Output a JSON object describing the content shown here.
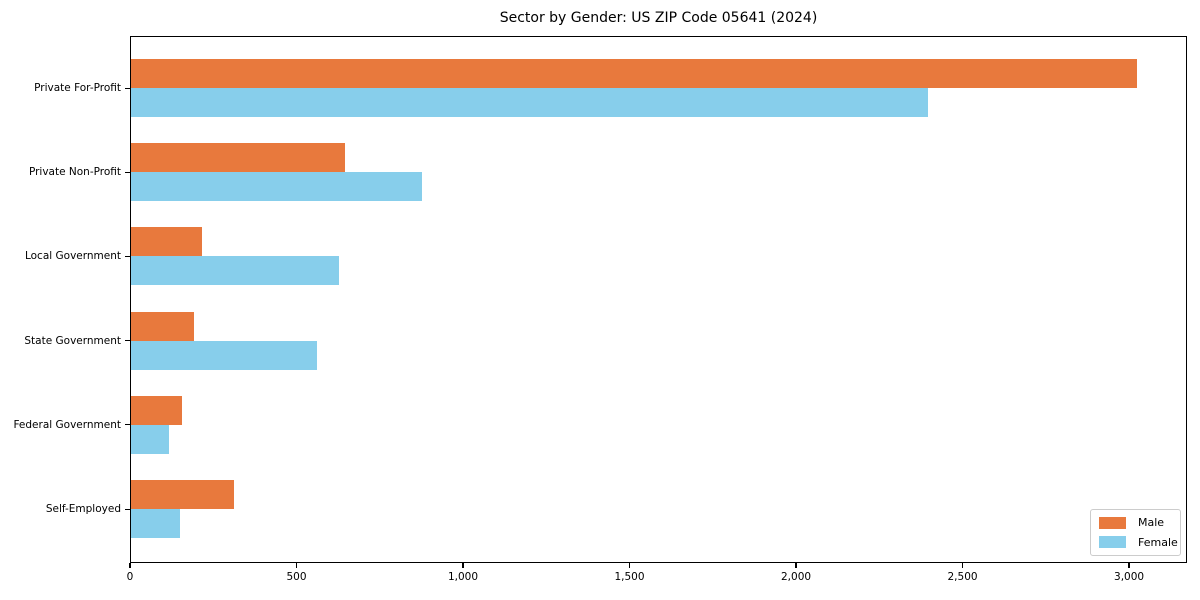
{
  "title": "Sector by Gender: US ZIP Code 05641 (2024)",
  "chart_data": {
    "type": "bar",
    "orientation": "horizontal",
    "title": "Sector by Gender: US ZIP Code 05641 (2024)",
    "xlabel": "",
    "ylabel": "",
    "categories": [
      "Private For-Profit",
      "Private Non-Profit",
      "Local Government",
      "State Government",
      "Federal Government",
      "Self-Employed"
    ],
    "series": [
      {
        "name": "Male",
        "color": "#E8793D",
        "values": [
          3021,
          643,
          213,
          189,
          153,
          310
        ]
      },
      {
        "name": "Female",
        "color": "#87CEEB",
        "values": [
          2393,
          875,
          625,
          559,
          114,
          147
        ]
      }
    ],
    "xlim": [
      0,
      3174
    ],
    "x_ticks": [
      0,
      500,
      1000,
      1500,
      2000,
      2500,
      3000
    ],
    "x_tick_labels": [
      "0",
      "500",
      "1,000",
      "1,500",
      "2,000",
      "2,500",
      "3,000"
    ],
    "grid": false,
    "legend_position": "lower right",
    "spine_color": "#000000",
    "background_color": "#ffffff",
    "legend_border_color": "#cccccc"
  }
}
